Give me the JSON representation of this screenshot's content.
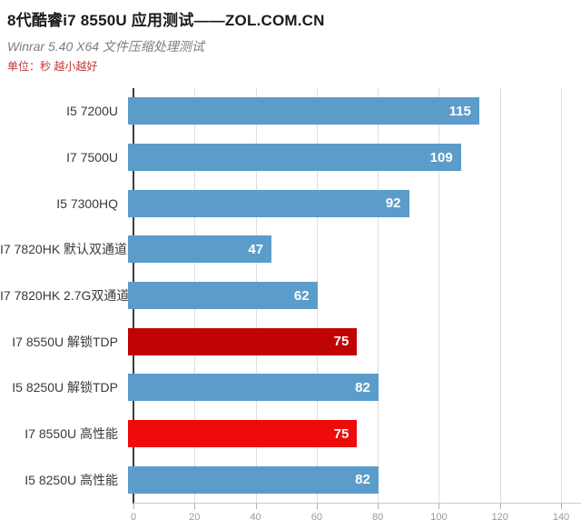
{
  "header": {
    "title": "8代酷睿i7 8550U 应用测试——ZOL.COM.CN",
    "subtitle": "Winrar 5.40 X64 文件压缩处理测试",
    "unit_note": "单位：秒 越小越好"
  },
  "chart_data": {
    "type": "bar",
    "orientation": "horizontal",
    "title": "Winrar 5.40 X64 文件压缩处理测试",
    "unit": "秒",
    "note": "越小越好",
    "categories": [
      "I5 7200U",
      "I7 7500U",
      "I5 7300HQ",
      "I7 7820HK 默认双通道",
      "I7 7820HK 2.7G双通道",
      "I7 8550U 解锁TDP",
      "I5 8250U 解锁TDP",
      "I7 8550U 高性能",
      "I5 8250U 高性能"
    ],
    "values": [
      115,
      109,
      92,
      47,
      62,
      75,
      82,
      75,
      82
    ],
    "bar_color_keys": [
      "blue",
      "blue",
      "blue",
      "blue",
      "blue",
      "dark_red",
      "blue",
      "bright_red",
      "blue"
    ],
    "palette": {
      "blue": "#5c9cca",
      "dark_red": "#c00404",
      "bright_red": "#ee0b0b"
    },
    "value_label_color": "#ffffff",
    "xlim": [
      0,
      140
    ],
    "x_ticks": [
      0,
      20,
      40,
      60,
      80,
      100,
      120,
      140
    ],
    "grid": "vertical-light",
    "legend": "none"
  }
}
